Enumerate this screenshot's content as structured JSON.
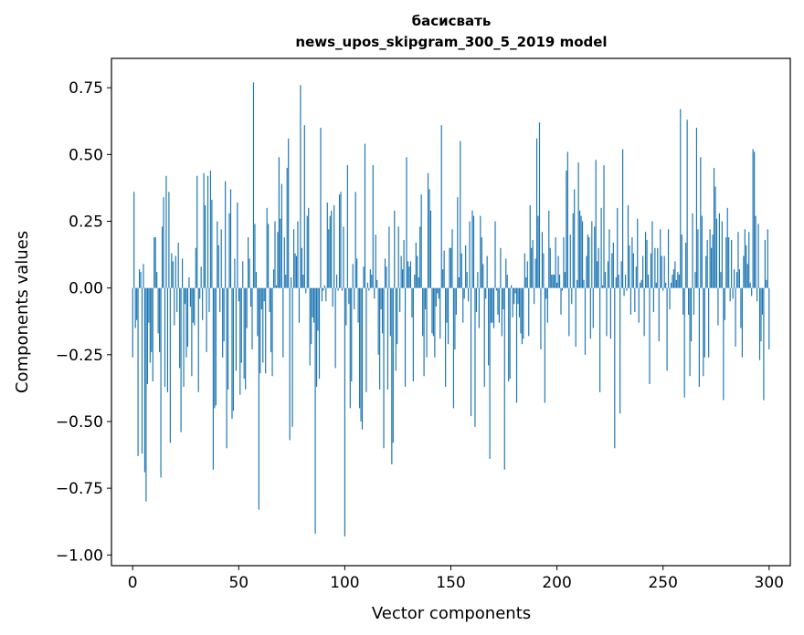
{
  "chart_data": {
    "type": "bar",
    "title": "басисвать",
    "subtitle": "news_upos_skipgram_300_5_2019 model",
    "xlabel": "Vector components",
    "ylabel": "Components values",
    "xlim": [
      -10,
      310
    ],
    "ylim": [
      -1.04,
      0.86
    ],
    "xticks": [
      0,
      50,
      100,
      150,
      200,
      250,
      300
    ],
    "yticks": [
      -1.0,
      -0.75,
      -0.5,
      -0.25,
      0.0,
      0.25,
      0.5,
      0.75
    ],
    "ytick_labels": [
      "−1.00",
      "−0.75",
      "−0.50",
      "−0.25",
      "0.00",
      "0.25",
      "0.50",
      "0.75"
    ],
    "bar_color": "#1f77b4",
    "grid": false,
    "values": [
      -0.26,
      0.36,
      -0.15,
      -0.12,
      -0.63,
      0.07,
      0.06,
      -0.62,
      0.09,
      -0.69,
      -0.8,
      -0.36,
      -0.13,
      -0.28,
      -0.24,
      -0.35,
      0.19,
      0.19,
      0.06,
      -0.17,
      -0.24,
      -0.71,
      0.23,
      0.34,
      -0.37,
      0.42,
      -0.39,
      0.36,
      -0.58,
      0.13,
      0.1,
      -0.14,
      0.12,
      -0.09,
      0.17,
      -0.3,
      -0.54,
      0.11,
      -0.37,
      -0.06,
      -0.26,
      -0.22,
      0.04,
      -0.07,
      -0.33,
      -0.13,
      -0.14,
      0.15,
      0.42,
      -0.39,
      -0.04,
      0.08,
      -0.12,
      0.43,
      0.31,
      -0.24,
      0.42,
      -0.09,
      0.44,
      0.33,
      -0.68,
      -0.45,
      -0.44,
      0.25,
      0.16,
      -0.09,
      0.22,
      -0.26,
      -0.2,
      0.4,
      -0.6,
      -0.38,
      0.28,
      0.37,
      -0.49,
      -0.46,
      0.11,
      -0.31,
      0.32,
      -0.05,
      -0.4,
      -0.28,
      0.1,
      -0.34,
      -0.38,
      -0.15,
      0.19,
      0.11,
      -0.07,
      -0.23,
      0.77,
      0.24,
      0.06,
      -0.18,
      -0.83,
      -0.32,
      -0.08,
      -0.28,
      -0.05,
      -0.32,
      0.3,
      0.24,
      -0.09,
      -0.24,
      -0.33,
      0.07,
      0.25,
      0.01,
      0.21,
      0.49,
      0.26,
      0.39,
      -0.26,
      0.19,
      0.05,
      0.45,
      0.56,
      -0.57,
      0.04,
      -0.52,
      0.22,
      0.13,
      0.12,
      0.25,
      -0.13,
      0.76,
      0.15,
      0.05,
      0.61,
      -0.02,
      0.27,
      0.3,
      -0.29,
      -0.21,
      -0.11,
      -0.13,
      -0.92,
      -0.37,
      -0.16,
      -0.34,
      0.6,
      -0.05,
      -0.01,
      0.01,
      -0.05,
      0.32,
      0.22,
      0.27,
      0.29,
      -0.07,
      0.31,
      -0.3,
      0.05,
      -0.01,
      0.35,
      0.36,
      -0.01,
      0.23,
      -0.93,
      -0.14,
      0.46,
      -0.06,
      -0.45,
      -0.35,
      0.09,
      -0.08,
      0.36,
      0.11,
      -0.13,
      -0.45,
      -0.5,
      -0.53,
      0.08,
      0.54,
      -0.39,
      0.02,
      -0.01,
      0.07,
      0.05,
      0.46,
      -0.04,
      0.2,
      0.03,
      -0.25,
      -0.38,
      -0.08,
      -0.17,
      -0.6,
      0.11,
      0.08,
      -0.38,
      0.23,
      -0.18,
      -0.66,
      -0.58,
      0.29,
      -0.31,
      -0.21,
      0.23,
      -0.09,
      0.12,
      0.07,
      0.18,
      -0.37,
      0.49,
      0.1,
      0.08,
      0.1,
      -0.11,
      -0.35,
      0.05,
      0.17,
      0.12,
      0.04,
      0.23,
      0.35,
      -0.18,
      -0.33,
      -0.08,
      -0.26,
      0.43,
      0.37,
      0.29,
      -0.17,
      -0.18,
      -0.26,
      -0.07,
      -0.02,
      -0.04,
      -0.19,
      0.61,
      0.07,
      0.14,
      -0.37,
      -0.13,
      -0.21,
      0.15,
      0.15,
      0.22,
      -0.45,
      -0.23,
      -0.1,
      0.34,
      0.04,
      0.55,
      0.13,
      -0.13,
      -0.04,
      0.16,
      0.06,
      -0.05,
      0.25,
      -0.48,
      0.29,
      0.27,
      -0.52,
      -0.09,
      0.06,
      -0.15,
      0.27,
      0.19,
      0.09,
      -0.37,
      -0.04,
      0.12,
      -0.29,
      -0.64,
      -0.13,
      -0.13,
      -0.15,
      0.25,
      -0.01,
      -0.1,
      -0.13,
      0.15,
      -0.18,
      -0.08,
      -0.68,
      0.11,
      0.05,
      -0.35,
      -0.34,
      0.01,
      -0.11,
      -0.06,
      -0.02,
      -0.43,
      -0.06,
      -0.11,
      -0.17,
      -0.21,
      -0.19,
      0.13,
      0.04,
      0.1,
      -0.18,
      0.31,
      0.15,
      0.18,
      -0.06,
      0.11,
      0.56,
      0.27,
      0.62,
      -0.23,
      0.21,
      0.13,
      -0.43,
      -0.04,
      -0.13,
      0.29,
      0.15,
      0.05,
      0.05,
      0.05,
      0.19,
      0.02,
      0.12,
      0.05,
      -0.1,
      -0.01,
      0.19,
      0.06,
      0.44,
      0.51,
      -0.18,
      0.2,
      -0.06,
      0.28,
      0.37,
      -0.22,
      0.03,
      0.47,
      0.29,
      0.27,
      0.25,
      0.03,
      -0.25,
      0.12,
      0.2,
      0.19,
      -0.19,
      0.25,
      -0.15,
      0.23,
      0.48,
      0.1,
      0.15,
      -0.39,
      0.3,
      0.01,
      0.46,
      0.06,
      -0.18,
      0.1,
      0.22,
      -0.19,
      0.13,
      0.17,
      -0.6,
      0.04,
      0.3,
      0.05,
      -0.47,
      0.1,
      0.52,
      -0.03,
      0.05,
      -0.01,
      0.31,
      0.16,
      -0.1,
      0.19,
      0.13,
      -0.09,
      0.08,
      0.26,
      -0.13,
      0.02,
      0.03,
      0.12,
      -0.18,
      0.21,
      0.18,
      0.05,
      -0.36,
      0.13,
      0.25,
      -0.09,
      0.15,
      0.02,
      0.15,
      -0.2,
      0.22,
      0.12,
      -0.01,
      0.12,
      0.02,
      -0.31,
      0.22,
      -0.08,
      0.02,
      0.05,
      0.07,
      0.1,
      0.03,
      0.06,
      0.05,
      0.67,
      0.2,
      -0.1,
      -0.41,
      0.17,
      0.63,
      -0.1,
      -0.33,
      -0.2,
      0.28,
      -0.1,
      0.06,
      0.6,
      0.22,
      -0.37,
      0.49,
      0.27,
      -0.33,
      -0.26,
      0.12,
      0.18,
      -0.26,
      0.22,
      0.15,
      0.2,
      0.45,
      0.38,
      0.26,
      -0.14,
      0.28,
      0.06,
      0.25,
      -0.42,
      -0.12,
      0.19,
      0.3,
      0.19,
      -0.05,
      0.18,
      -0.04,
      0.07,
      -0.22,
      0.06,
      0.21,
      0.07,
      -0.15,
      -0.26,
      0.12,
      0.22,
      0.16,
      0.09,
      0.21,
      0.02,
      -0.03,
      0.52,
      0.51,
      0.27,
      -0.05,
      0.24,
      -0.27,
      -0.2,
      -0.1,
      -0.42,
      0.18,
      0.03,
      0.22,
      -0.23
    ]
  }
}
